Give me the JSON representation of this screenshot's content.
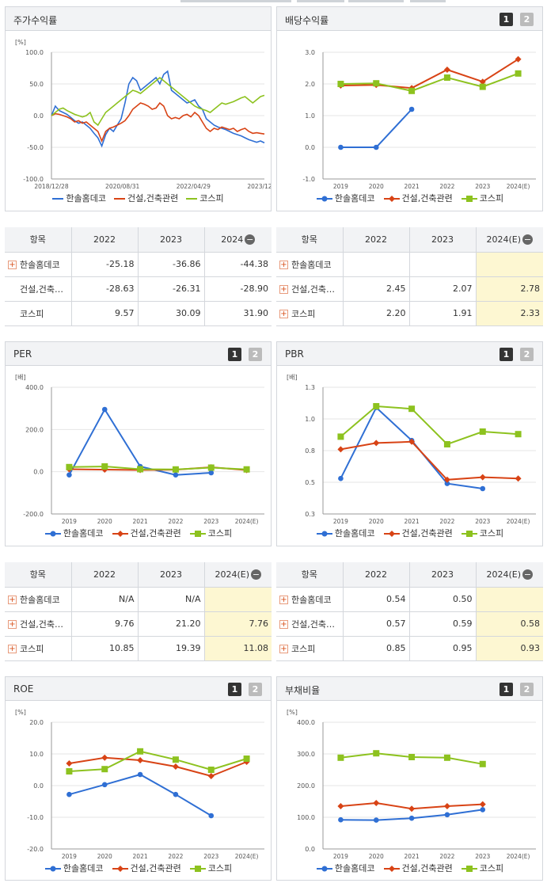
{
  "colors": {
    "company": "#2f6fd4",
    "industry": "#d84315",
    "kospi": "#8dc21f"
  },
  "legend": [
    "한솔홈데코",
    "건설,건축관련",
    "코스피"
  ],
  "panels": {
    "stock": {
      "title": "주가수익률"
    },
    "div": {
      "title": "배당수익률",
      "btn1": "1",
      "btn2": "2"
    },
    "per": {
      "title": "PER",
      "btn1": "1",
      "btn2": "2"
    },
    "pbr": {
      "title": "PBR",
      "btn1": "1",
      "btn2": "2"
    },
    "roe": {
      "title": "ROE",
      "btn1": "1",
      "btn2": "2"
    },
    "debt": {
      "title": "부채비율",
      "btn1": "1",
      "btn2": "2"
    }
  },
  "chart_data": [
    {
      "id": "stock",
      "type": "line",
      "unit": "[%]",
      "x_ticks": [
        "2018/12/28",
        "2020/08/31",
        "2022/04/29",
        "2023/12/28"
      ],
      "yticks": [
        "100.0",
        "50.0",
        "0.0",
        "-50.0",
        "-100.0"
      ],
      "ylim": [
        -100,
        100
      ],
      "series": [
        {
          "name": "한솔홈데코",
          "values": [
            0,
            15,
            8,
            5,
            2,
            -3,
            -8,
            -12,
            -10,
            -15,
            -20,
            -28,
            -35,
            -48,
            -30,
            -20,
            -25,
            -15,
            -5,
            20,
            50,
            60,
            55,
            40,
            45,
            50,
            55,
            60,
            50,
            65,
            70,
            40,
            35,
            30,
            25,
            20,
            22,
            25,
            15,
            10,
            -5,
            -10,
            -15,
            -18,
            -20,
            -22,
            -25,
            -28,
            -30,
            -32,
            -35,
            -38,
            -40,
            -42,
            -40,
            -43
          ]
        },
        {
          "name": "건설,건축관련",
          "values": [
            0,
            3,
            2,
            0,
            -2,
            -5,
            -10,
            -8,
            -12,
            -10,
            -15,
            -20,
            -25,
            -40,
            -25,
            -20,
            -18,
            -15,
            -12,
            -8,
            0,
            10,
            15,
            20,
            18,
            15,
            10,
            12,
            20,
            15,
            0,
            -5,
            -3,
            -5,
            0,
            2,
            -2,
            5,
            0,
            -10,
            -20,
            -25,
            -20,
            -22,
            -18,
            -20,
            -22,
            -20,
            -25,
            -22,
            -20,
            -25,
            -28,
            -27,
            -28,
            -29
          ]
        },
        {
          "name": "코스피",
          "values": [
            0,
            5,
            10,
            12,
            8,
            5,
            2,
            0,
            -2,
            0,
            5,
            -10,
            -15,
            -5,
            5,
            10,
            15,
            20,
            25,
            30,
            35,
            40,
            38,
            35,
            40,
            45,
            50,
            55,
            60,
            55,
            50,
            45,
            40,
            35,
            30,
            25,
            20,
            15,
            12,
            10,
            8,
            5,
            10,
            15,
            20,
            18,
            20,
            22,
            25,
            28,
            30,
            25,
            20,
            25,
            30,
            32
          ]
        }
      ]
    },
    {
      "id": "div",
      "type": "line",
      "unit": "",
      "categories": [
        "2019",
        "2020",
        "2021",
        "2022",
        "2023",
        "2024(E)"
      ],
      "yticks": [
        "3.0",
        "2.0",
        "1.0",
        "0.0",
        "-1.0"
      ],
      "ylim": [
        -1,
        3
      ],
      "series": [
        {
          "name": "한솔홈데코",
          "values": [
            0,
            0,
            1.2,
            null,
            null,
            null
          ]
        },
        {
          "name": "건설,건축관련",
          "values": [
            1.95,
            1.97,
            1.87,
            2.45,
            2.07,
            2.78
          ]
        },
        {
          "name": "코스피",
          "values": [
            2.0,
            2.02,
            1.78,
            2.2,
            1.91,
            2.33
          ]
        }
      ]
    },
    {
      "id": "per",
      "type": "line",
      "unit": "[배]",
      "categories": [
        "2019",
        "2020",
        "2021",
        "2022",
        "2023",
        "2024(E)"
      ],
      "yticks": [
        "400.0",
        "200.0",
        "0.0",
        "-200.0"
      ],
      "ylim": [
        -200,
        400
      ],
      "series": [
        {
          "name": "한솔홈데코",
          "values": [
            -15,
            295,
            25,
            -15,
            -5,
            null
          ]
        },
        {
          "name": "건설,건축관련",
          "values": [
            12,
            10,
            8,
            9.76,
            21.2,
            7.76
          ]
        },
        {
          "name": "코스피",
          "values": [
            22,
            25,
            12,
            10.85,
            19.39,
            11.08
          ]
        }
      ]
    },
    {
      "id": "pbr",
      "type": "line",
      "unit": "[배]",
      "categories": [
        "2019",
        "2020",
        "2021",
        "2022",
        "2023",
        "2024(E)"
      ],
      "yticks": [
        "1.3",
        "1.0",
        "0.8",
        "0.5",
        "0.3"
      ],
      "ylim": [
        0.3,
        1.3
      ],
      "series": [
        {
          "name": "한솔홈데코",
          "values": [
            0.58,
            1.14,
            0.88,
            0.54,
            0.5,
            null
          ]
        },
        {
          "name": "건설,건축관련",
          "values": [
            0.81,
            0.86,
            0.87,
            0.57,
            0.59,
            0.58
          ]
        },
        {
          "name": "코스피",
          "values": [
            0.91,
            1.15,
            1.13,
            0.85,
            0.95,
            0.93
          ]
        }
      ]
    },
    {
      "id": "roe",
      "type": "line",
      "unit": "[%]",
      "categories": [
        "2019",
        "2020",
        "2021",
        "2022",
        "2023",
        "2024(E)"
      ],
      "yticks": [
        "20.0",
        "10.0",
        "0.0",
        "-10.0",
        "-20.0"
      ],
      "ylim": [
        -20,
        20
      ],
      "series": [
        {
          "name": "한솔홈데코",
          "values": [
            -2.8,
            0.3,
            3.5,
            -2.8,
            -9.5,
            null
          ]
        },
        {
          "name": "건설,건축관련",
          "values": [
            7.0,
            8.8,
            8.0,
            6.0,
            3.0,
            7.5
          ]
        },
        {
          "name": "코스피",
          "values": [
            4.5,
            5.2,
            10.8,
            8.2,
            5.0,
            8.5
          ]
        }
      ]
    },
    {
      "id": "debt",
      "type": "line",
      "unit": "[%]",
      "categories": [
        "2019",
        "2020",
        "2021",
        "2022",
        "2023",
        "2024(E)"
      ],
      "yticks": [
        "400.0",
        "300.0",
        "200.0",
        "100.0",
        "0.0"
      ],
      "ylim": [
        0,
        400
      ],
      "series": [
        {
          "name": "한솔홈데코",
          "values": [
            92,
            91,
            97,
            108,
            124,
            null
          ]
        },
        {
          "name": "건설,건축관련",
          "values": [
            135,
            145,
            127,
            135,
            141,
            null
          ]
        },
        {
          "name": "코스피",
          "values": [
            288,
            302,
            290,
            288,
            268,
            null
          ]
        }
      ]
    }
  ],
  "tables": {
    "stock": {
      "header": [
        "항목",
        "2022",
        "2023",
        "2024"
      ],
      "rows": [
        {
          "name": "한솔홈데코",
          "plus": true,
          "vals": [
            "-25.18",
            "-36.86",
            "-44.38"
          ]
        },
        {
          "name": "건설,건축…",
          "plus": false,
          "vals": [
            "-28.63",
            "-26.31",
            "-28.90"
          ]
        },
        {
          "name": "코스피",
          "plus": false,
          "vals": [
            "9.57",
            "30.09",
            "31.90"
          ]
        }
      ]
    },
    "div": {
      "header": [
        "항목",
        "2022",
        "2023",
        "2024(E)"
      ],
      "rows": [
        {
          "name": "한솔홈데코",
          "plus": true,
          "vals": [
            "",
            "",
            ""
          ]
        },
        {
          "name": "건설,건축…",
          "plus": true,
          "vals": [
            "2.45",
            "2.07",
            "2.78"
          ]
        },
        {
          "name": "코스피",
          "plus": true,
          "vals": [
            "2.20",
            "1.91",
            "2.33"
          ]
        }
      ]
    },
    "per": {
      "header": [
        "항목",
        "2022",
        "2023",
        "2024(E)"
      ],
      "rows": [
        {
          "name": "한솔홈데코",
          "plus": true,
          "vals": [
            "N/A",
            "N/A",
            ""
          ]
        },
        {
          "name": "건설,건축…",
          "plus": true,
          "vals": [
            "9.76",
            "21.20",
            "7.76"
          ]
        },
        {
          "name": "코스피",
          "plus": true,
          "vals": [
            "10.85",
            "19.39",
            "11.08"
          ]
        }
      ]
    },
    "pbr": {
      "header": [
        "항목",
        "2022",
        "2023",
        "2024(E)"
      ],
      "rows": [
        {
          "name": "한솔홈데코",
          "plus": true,
          "vals": [
            "0.54",
            "0.50",
            ""
          ]
        },
        {
          "name": "건설,건축…",
          "plus": true,
          "vals": [
            "0.57",
            "0.59",
            "0.58"
          ]
        },
        {
          "name": "코스피",
          "plus": true,
          "vals": [
            "0.85",
            "0.95",
            "0.93"
          ]
        }
      ]
    }
  }
}
